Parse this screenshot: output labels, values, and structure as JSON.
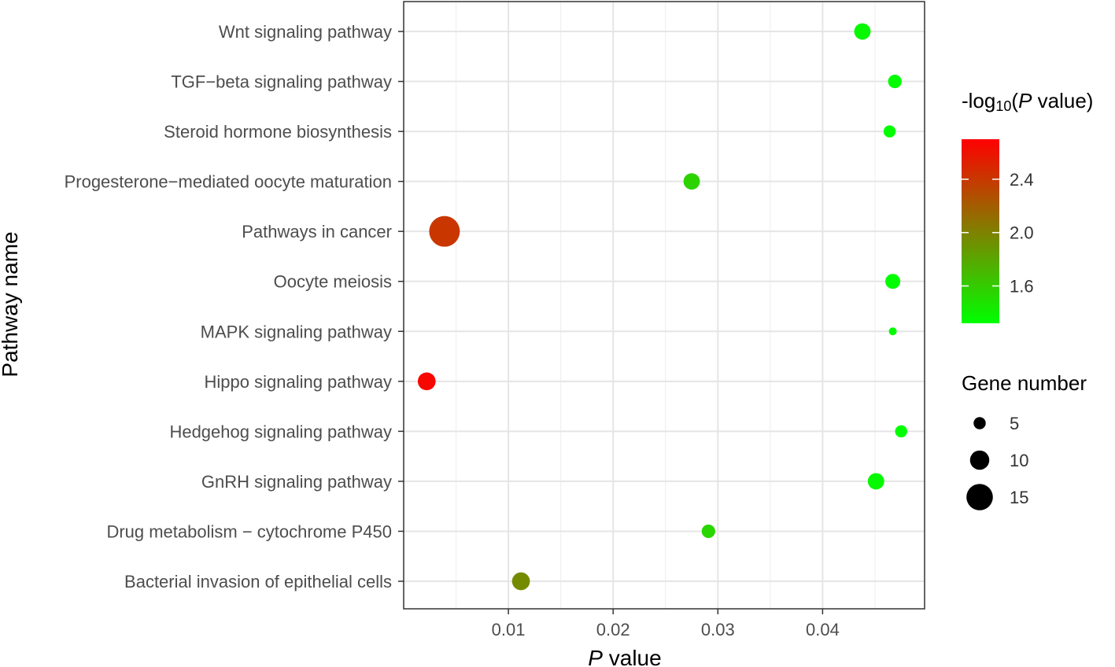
{
  "chart_data": {
    "type": "scatter",
    "title": "",
    "xlabel_italic": "P",
    "xlabel_rest": " value",
    "ylabel": "Pathway name",
    "xlim": [
      0,
      0.0495
    ],
    "x_ticks": [
      0.01,
      0.02,
      0.03,
      0.04
    ],
    "x_tick_labels": [
      "0.01",
      "0.02",
      "0.03",
      "0.04"
    ],
    "grid": true,
    "points": [
      {
        "pathway": "Wnt signaling pathway",
        "p_value": 0.0438,
        "neg_log10_p": 1.36,
        "gene_number": 8
      },
      {
        "pathway": "TGF−beta signaling pathway",
        "p_value": 0.0469,
        "neg_log10_p": 1.33,
        "gene_number": 6
      },
      {
        "pathway": "Steroid hormone biosynthesis",
        "p_value": 0.0464,
        "neg_log10_p": 1.33,
        "gene_number": 5
      },
      {
        "pathway": "Progesterone−mediated oocyte maturation",
        "p_value": 0.0275,
        "neg_log10_p": 1.56,
        "gene_number": 8
      },
      {
        "pathway": "Pathways in cancer",
        "p_value": 0.0039,
        "neg_log10_p": 2.41,
        "gene_number": 18
      },
      {
        "pathway": "Oocyte meiosis",
        "p_value": 0.0467,
        "neg_log10_p": 1.33,
        "gene_number": 7
      },
      {
        "pathway": "MAPK signaling pathway",
        "p_value": 0.0467,
        "neg_log10_p": 1.33,
        "gene_number": 2
      },
      {
        "pathway": "Hippo signaling pathway",
        "p_value": 0.0022,
        "neg_log10_p": 2.66,
        "gene_number": 9
      },
      {
        "pathway": "Hedgehog signaling pathway",
        "p_value": 0.0475,
        "neg_log10_p": 1.32,
        "gene_number": 5
      },
      {
        "pathway": "GnRH signaling pathway",
        "p_value": 0.0451,
        "neg_log10_p": 1.35,
        "gene_number": 8
      },
      {
        "pathway": "Drug metabolism − cytochrome P450",
        "p_value": 0.0291,
        "neg_log10_p": 1.54,
        "gene_number": 6
      },
      {
        "pathway": "Bacterial invasion of epithelial cells",
        "p_value": 0.0112,
        "neg_log10_p": 1.95,
        "gene_number": 9
      }
    ],
    "color_legend": {
      "title_prefix": "-log",
      "title_subscript": "10",
      "title_paren_open": "(",
      "title_italic": "P",
      "title_suffix": " value)",
      "range": [
        1.32,
        2.7
      ],
      "ticks": [
        1.6,
        2.0,
        2.4
      ],
      "tick_labels": [
        "1.6",
        "2.0",
        "2.4"
      ],
      "low_color": "#00ff00",
      "high_color": "#ff0000"
    },
    "size_legend": {
      "title": "Gene number",
      "values": [
        5,
        10,
        15
      ],
      "labels": [
        "5",
        "10",
        "15"
      ]
    },
    "colors": {
      "panel_border": "#333333",
      "grid_major": "#e5e5e5",
      "grid_minor": "#f0f0f0",
      "tick": "#333333"
    }
  }
}
